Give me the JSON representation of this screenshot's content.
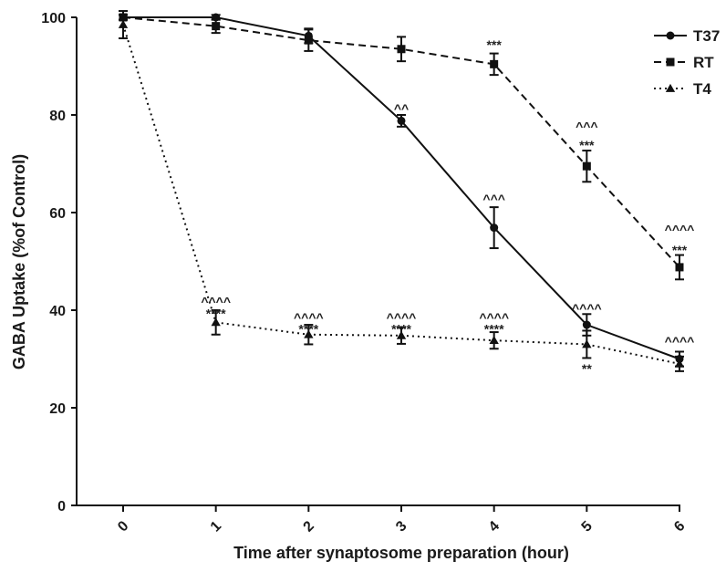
{
  "chart_data": {
    "type": "line",
    "xlabel": "Time after synaptosome preparation (hour)",
    "ylabel": "GABA Uptake (%of Control)",
    "x": [
      0,
      1,
      2,
      3,
      4,
      5,
      6
    ],
    "xlim": [
      0,
      6
    ],
    "ylim": [
      0,
      100
    ],
    "xticks": [
      "0",
      "1",
      "2",
      "3",
      "4",
      "5",
      "6"
    ],
    "yticks": [
      "0",
      "20",
      "40",
      "60",
      "80",
      "100"
    ],
    "grid": false,
    "legend_position": "top-right",
    "series": [
      {
        "name": "T37",
        "line_style": "solid",
        "marker": "circle",
        "values": [
          100,
          100,
          96.2,
          78.8,
          56.9,
          37.0,
          30.0
        ],
        "errors": [
          0.5,
          0.5,
          1.5,
          1.2,
          4.2,
          2.2,
          1.5
        ]
      },
      {
        "name": "RT",
        "line_style": "dashed",
        "marker": "square",
        "values": [
          100,
          98.2,
          95.3,
          93.5,
          90.4,
          69.5,
          48.8
        ],
        "errors": [
          0.5,
          1.4,
          2.2,
          2.5,
          2.2,
          3.2,
          2.5
        ]
      },
      {
        "name": "T4",
        "line_style": "dotted",
        "marker": "triangle",
        "values": [
          98.5,
          37.5,
          35.0,
          34.8,
          33.8,
          33.0,
          29.0
        ],
        "errors": [
          2.8,
          2.5,
          2.0,
          1.7,
          1.7,
          2.8,
          1.5
        ]
      }
    ],
    "annotations": [
      {
        "x": 1,
        "y": 41.8,
        "text": "^^^^"
      },
      {
        "x": 1,
        "y": 39.3,
        "text": "****"
      },
      {
        "x": 2,
        "y": 38.5,
        "text": "^^^^"
      },
      {
        "x": 2,
        "y": 36.2,
        "text": "****"
      },
      {
        "x": 3,
        "y": 38.5,
        "text": "^^^^"
      },
      {
        "x": 3,
        "y": 36.2,
        "text": "****"
      },
      {
        "x": 4,
        "y": 38.5,
        "text": "^^^^"
      },
      {
        "x": 4,
        "y": 36.2,
        "text": "****"
      },
      {
        "x": 5,
        "y": 40.4,
        "text": "^^^^"
      },
      {
        "x": 5,
        "y": 28.0,
        "text": "**"
      },
      {
        "x": 6,
        "y": 33.6,
        "text": "^^^^"
      },
      {
        "x": 6,
        "y": 52.3,
        "text": "***"
      },
      {
        "x": 6,
        "y": 56.5,
        "text": "^^^^"
      },
      {
        "x": 5,
        "y": 73.8,
        "text": "***"
      },
      {
        "x": 5,
        "y": 77.7,
        "text": "^^^"
      },
      {
        "x": 4,
        "y": 94.4,
        "text": "***"
      },
      {
        "x": 3,
        "y": 81.3,
        "text": "^^"
      },
      {
        "x": 4,
        "y": 62.8,
        "text": "^^^"
      }
    ]
  }
}
